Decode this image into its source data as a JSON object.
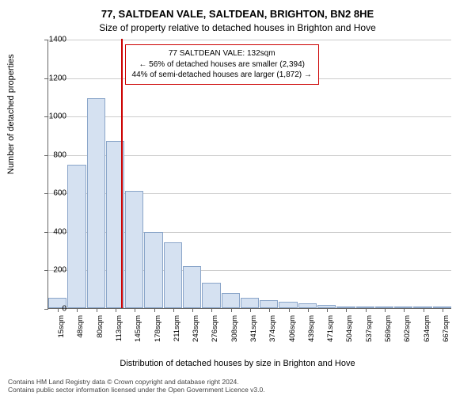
{
  "title_main": "77, SALTDEAN VALE, SALTDEAN, BRIGHTON, BN2 8HE",
  "title_sub": "Size of property relative to detached houses in Brighton and Hove",
  "y_axis": {
    "label": "Number of detached properties",
    "min": 0,
    "max": 1400,
    "tick_step": 200,
    "ticks": [
      0,
      200,
      400,
      600,
      800,
      1000,
      1200,
      1400
    ]
  },
  "x_axis": {
    "label": "Distribution of detached houses by size in Brighton and Hove",
    "categories": [
      "15sqm",
      "48sqm",
      "80sqm",
      "113sqm",
      "145sqm",
      "178sqm",
      "211sqm",
      "243sqm",
      "276sqm",
      "308sqm",
      "341sqm",
      "374sqm",
      "406sqm",
      "439sqm",
      "471sqm",
      "504sqm",
      "537sqm",
      "569sqm",
      "602sqm",
      "634sqm",
      "667sqm"
    ]
  },
  "chart": {
    "type": "histogram",
    "bar_color": "#d5e1f1",
    "bar_border_color": "#8aa5c9",
    "grid_color": "#cccccc",
    "background_color": "#ffffff",
    "values": [
      55,
      745,
      1090,
      870,
      610,
      395,
      340,
      220,
      130,
      80,
      55,
      40,
      35,
      25,
      18,
      8,
      5,
      3,
      3,
      2,
      2
    ]
  },
  "marker": {
    "value_sqm": 132,
    "color": "#cc0000",
    "info_lines": [
      "77 SALTDEAN VALE: 132sqm",
      "← 56% of detached houses are smaller (2,394)",
      "44% of semi-detached houses are larger (1,872) →"
    ]
  },
  "footer": {
    "line1": "Contains HM Land Registry data © Crown copyright and database right 2024.",
    "line2": "Contains public sector information licensed under the Open Government Licence v3.0."
  }
}
